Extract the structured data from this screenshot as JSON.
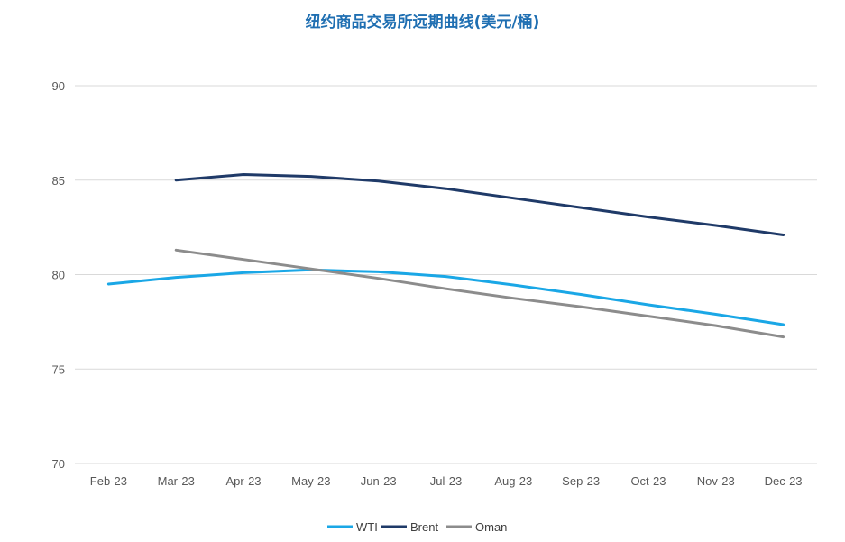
{
  "chart_data": {
    "type": "line",
    "title": "纽约商品交易所远期曲线(美元/桶)",
    "xlabel": "",
    "ylabel": "",
    "categories": [
      "Feb-23",
      "Mar-23",
      "Apr-23",
      "May-23",
      "Jun-23",
      "Jul-23",
      "Aug-23",
      "Sep-23",
      "Oct-23",
      "Nov-23",
      "Dec-23"
    ],
    "y_ticks": [
      70,
      75,
      80,
      85,
      90
    ],
    "ylim": [
      70,
      90
    ],
    "grid": true,
    "legend_position": "bottom",
    "series": [
      {
        "name": "WTI",
        "color": "#1aa7e6",
        "values": [
          79.5,
          79.85,
          80.1,
          80.25,
          80.15,
          79.9,
          79.45,
          78.95,
          78.4,
          77.9,
          77.35
        ]
      },
      {
        "name": "Brent",
        "color": "#1f3a68",
        "values": [
          null,
          85.0,
          85.3,
          85.2,
          84.95,
          84.55,
          84.05,
          83.55,
          83.05,
          82.6,
          82.1
        ]
      },
      {
        "name": "Oman",
        "color": "#8c8c8c",
        "values": [
          null,
          81.3,
          80.8,
          80.3,
          79.8,
          79.25,
          78.75,
          78.3,
          77.8,
          77.3,
          76.7
        ]
      }
    ]
  }
}
